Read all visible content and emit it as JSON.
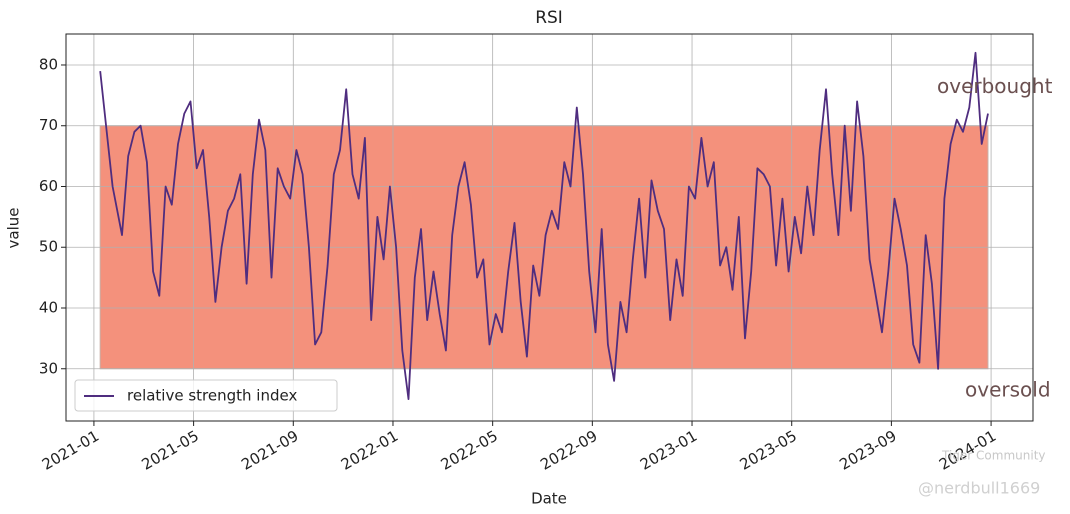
{
  "chart_data": {
    "type": "line",
    "title": "RSI",
    "x_label": "Date",
    "y_label": "value",
    "x": [
      "2021-01",
      "2021-01",
      "2021-02",
      "2021-02",
      "2021-02",
      "2021-02",
      "2021-03",
      "2021-03",
      "2021-03",
      "2021-03",
      "2021-04",
      "2021-04",
      "2021-04",
      "2021-04",
      "2021-05",
      "2021-05",
      "2021-05",
      "2021-05",
      "2021-06",
      "2021-06",
      "2021-06",
      "2021-06",
      "2021-07",
      "2021-07",
      "2021-07",
      "2021-07",
      "2021-08",
      "2021-08",
      "2021-08",
      "2021-08",
      "2021-09",
      "2021-09",
      "2021-09",
      "2021-09",
      "2021-10",
      "2021-10",
      "2021-10",
      "2021-10",
      "2021-11",
      "2021-11",
      "2021-11",
      "2021-11",
      "2021-12",
      "2021-12",
      "2021-12",
      "2021-12",
      "2022-01",
      "2022-01",
      "2022-01",
      "2022-01",
      "2022-02",
      "2022-02",
      "2022-02",
      "2022-02",
      "2022-03",
      "2022-03",
      "2022-03",
      "2022-03",
      "2022-04",
      "2022-04",
      "2022-04",
      "2022-04",
      "2022-05",
      "2022-05",
      "2022-05",
      "2022-05",
      "2022-06",
      "2022-06",
      "2022-06",
      "2022-06",
      "2022-07",
      "2022-07",
      "2022-07",
      "2022-07",
      "2022-08",
      "2022-08",
      "2022-08",
      "2022-08",
      "2022-09",
      "2022-09",
      "2022-09",
      "2022-09",
      "2022-10",
      "2022-10",
      "2022-10",
      "2022-10",
      "2022-11",
      "2022-11",
      "2022-11",
      "2022-11",
      "2022-12",
      "2022-12",
      "2022-12",
      "2022-12",
      "2023-01",
      "2023-01",
      "2023-01",
      "2023-01",
      "2023-02",
      "2023-02",
      "2023-02",
      "2023-02",
      "2023-03",
      "2023-03",
      "2023-03",
      "2023-03",
      "2023-04",
      "2023-04",
      "2023-04",
      "2023-04",
      "2023-05",
      "2023-05",
      "2023-05",
      "2023-05",
      "2023-06",
      "2023-06",
      "2023-06",
      "2023-06",
      "2023-07",
      "2023-07",
      "2023-07",
      "2023-07",
      "2023-08",
      "2023-08",
      "2023-08",
      "2023-08",
      "2023-09",
      "2023-09",
      "2023-09",
      "2023-09",
      "2023-10",
      "2023-10",
      "2023-10",
      "2023-10",
      "2023-11",
      "2023-11",
      "2023-11",
      "2023-11",
      "2023-12",
      "2023-12",
      "2023-12",
      "2023-12"
    ],
    "series": [
      {
        "name": "relative strength index",
        "color": "#4f2d7f",
        "values": [
          79,
          60,
          52,
          65,
          69,
          70,
          64,
          46,
          42,
          60,
          57,
          67,
          72,
          74,
          63,
          66,
          55,
          41,
          50,
          56,
          58,
          62,
          44,
          62,
          71,
          66,
          45,
          63,
          60,
          58,
          66,
          62,
          50,
          34,
          36,
          47,
          62,
          66,
          76,
          62,
          58,
          68,
          38,
          55,
          48,
          60,
          50,
          33,
          25,
          45,
          53,
          38,
          46,
          39,
          33,
          52,
          60,
          64,
          57,
          45,
          48,
          34,
          39,
          36,
          46,
          54,
          41,
          32,
          47,
          42,
          52,
          56,
          53,
          64,
          60,
          73,
          62,
          46,
          36,
          53,
          34,
          28,
          41,
          36,
          48,
          58,
          45,
          61,
          56,
          53,
          38,
          48,
          42,
          60,
          58,
          68,
          60,
          64,
          47,
          50,
          43,
          55,
          35,
          46,
          63,
          62,
          60,
          47,
          58,
          46,
          55,
          49,
          60,
          52,
          66,
          76,
          62,
          52,
          70,
          56,
          74,
          65,
          48,
          42,
          36,
          46,
          58,
          53,
          47,
          34,
          31,
          52,
          44,
          30,
          58,
          67,
          71,
          69,
          73,
          82,
          67,
          72
        ]
      }
    ],
    "band": {
      "ymin": 30,
      "ymax": 70,
      "color": "#f4917c"
    },
    "annotations": [
      "overbought",
      "oversold"
    ],
    "xlim": [
      "2020-12",
      "2024-02"
    ],
    "xticks": [
      "2021-01",
      "2021-05",
      "2021-09",
      "2022-01",
      "2022-05",
      "2022-09",
      "2023-01",
      "2023-05",
      "2023-09",
      "2024-01"
    ],
    "ylim": [
      21.4,
      85.1
    ],
    "yticks": [
      30,
      40,
      50,
      60,
      70,
      80
    ],
    "grid": true,
    "legend": "lower left",
    "watermark": [
      "Tiger Community",
      "@nerdbull1669"
    ]
  }
}
